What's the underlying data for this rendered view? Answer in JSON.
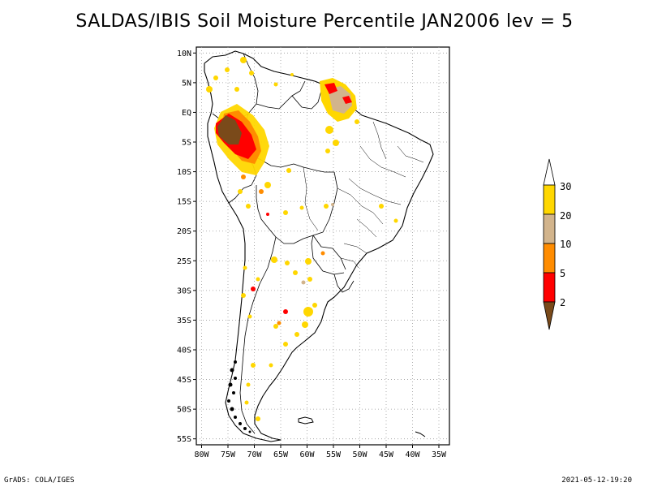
{
  "title": "SALDAS/IBIS Soil Moisture Percentile JAN2006 lev = 5",
  "map": {
    "lat_ticks": [
      "10N",
      "5N",
      "EQ",
      "5S",
      "10S",
      "15S",
      "20S",
      "25S",
      "30S",
      "35S",
      "40S",
      "45S",
      "50S",
      "55S"
    ],
    "lon_ticks": [
      "80W",
      "75W",
      "70W",
      "65W",
      "60W",
      "55W",
      "50W",
      "45W",
      "40W",
      "35W"
    ],
    "lat_range": [
      -56,
      11
    ],
    "lon_range": [
      -81,
      -33
    ],
    "grid": true
  },
  "colorbar": {
    "labels": [
      "2",
      "5",
      "10",
      "20",
      "30"
    ],
    "colors": {
      "below_2": "#7a4a1a",
      "2_5": "#ff0000",
      "5_10": "#ff8c00",
      "10_20": "#d2b48c",
      "20_30": "#ffd700",
      "above_30": "#ffffff"
    }
  },
  "footer": {
    "left": "GrADS: COLA/IGES",
    "right": "2021-05-12-19:20"
  }
}
